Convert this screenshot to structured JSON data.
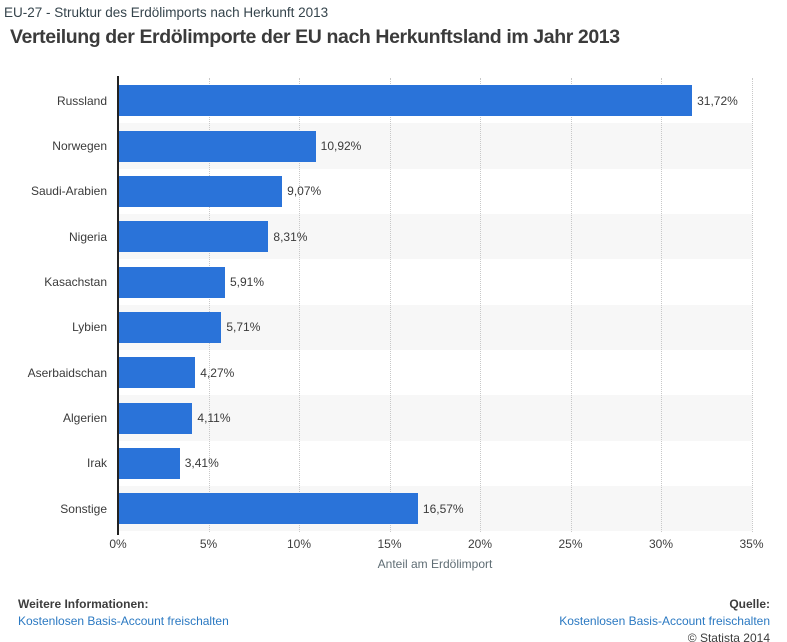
{
  "header": {
    "breadcrumb": "EU-27 - Struktur des Erdölimports nach Herkunft 2013"
  },
  "title": "Verteilung der Erdölimporte der EU nach Herkunftsland im Jahr 2013",
  "chart_data": {
    "type": "bar",
    "orientation": "horizontal",
    "categories": [
      "Russland",
      "Norwegen",
      "Saudi-Arabien",
      "Nigeria",
      "Kasachstan",
      "Lybien",
      "Aserbaidschan",
      "Algerien",
      "Irak",
      "Sonstige"
    ],
    "values": [
      31.72,
      10.92,
      9.07,
      8.31,
      5.91,
      5.71,
      4.27,
      4.11,
      3.41,
      16.57
    ],
    "value_labels": [
      "31,72%",
      "10,92%",
      "9,07%",
      "8,31%",
      "5,91%",
      "5,71%",
      "4,27%",
      "4,11%",
      "3,41%",
      "16,57%"
    ],
    "xlabel": "Anteil am Erdölimport",
    "xlim": [
      0,
      35
    ],
    "x_ticks": [
      "0%",
      "5%",
      "10%",
      "15%",
      "20%",
      "25%",
      "30%",
      "35%"
    ],
    "grid": true,
    "legend": false,
    "bar_color": "#2a73d9",
    "stripe_color": "#f7f7f7"
  },
  "footer": {
    "more_info_label": "Weitere Informationen:",
    "more_info_link": "Kostenlosen Basis-Account freischalten",
    "source_label": "Quelle:",
    "source_link": "Kostenlosen Basis-Account freischalten",
    "copyright": "© Statista 2014"
  }
}
